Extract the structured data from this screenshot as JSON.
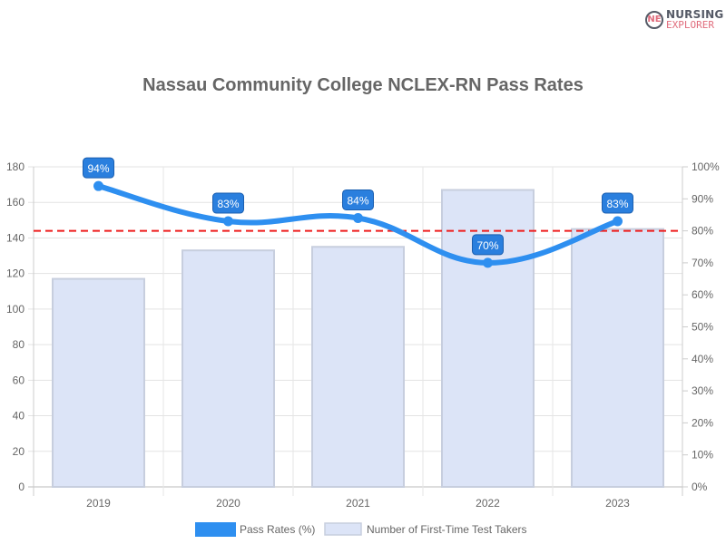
{
  "logo": {
    "line1": "NURSING",
    "line2": "EXPLORER",
    "mark": "NE"
  },
  "chart_data": {
    "type": "bar+line",
    "title": "Nassau Community College NCLEX-RN Pass Rates",
    "categories": [
      "2019",
      "2020",
      "2021",
      "2022",
      "2023"
    ],
    "series": [
      {
        "name": "Pass Rates (%)",
        "type": "line",
        "axis": "right",
        "values": [
          94,
          83,
          84,
          70,
          83
        ],
        "labels": [
          "94%",
          "83%",
          "84%",
          "70%",
          "83%"
        ],
        "color": "#2e8ff0"
      },
      {
        "name": "Number of First-Time Test Takers",
        "type": "bar",
        "axis": "left",
        "values": [
          117,
          133,
          135,
          167,
          145
        ],
        "color": "#dce4f7"
      }
    ],
    "reference_line": {
      "value": 80,
      "axis": "right",
      "color": "#ee1c1c",
      "style": "dashed"
    },
    "left_axis": {
      "ylim": [
        0,
        180
      ],
      "ticks": [
        "0",
        "20",
        "40",
        "60",
        "80",
        "100",
        "120",
        "140",
        "160",
        "180"
      ]
    },
    "right_axis": {
      "ylim": [
        0,
        100
      ],
      "ticks": [
        "0%",
        "10%",
        "20%",
        "30%",
        "40%",
        "50%",
        "60%",
        "70%",
        "80%",
        "90%",
        "100%"
      ]
    },
    "grid": true,
    "legend": "bottom"
  }
}
